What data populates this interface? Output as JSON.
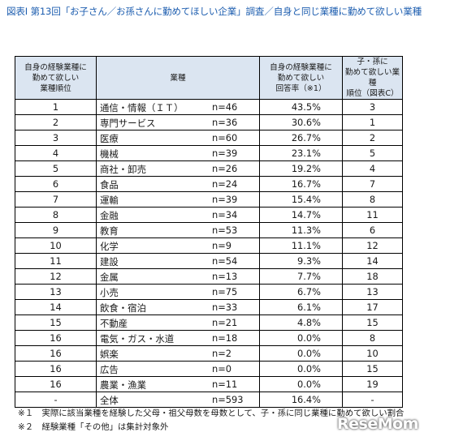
{
  "title": "図表Ⅰ 第13回「お子さん／お孫さんに勤めてほしい企業」調査／自身と同じ業種に勤めて欲しい業種",
  "headers": {
    "rank": "自身の経験業種に\n勤めて欲しい\n業種順位",
    "industry": "業種",
    "rate": "自身の経験業種に\n勤めて欲しい\n回答率（※1）",
    "child_rank": "子・孫に\n勤めて欲しい業種\n順位（図表C）"
  },
  "rows": [
    {
      "rank": "1",
      "industry": "通信・情報（ＩＴ）",
      "n": "n=46",
      "rate": "43.5%",
      "child_rank": "3"
    },
    {
      "rank": "2",
      "industry": "専門サービス",
      "n": "n=36",
      "rate": "30.6%",
      "child_rank": "1"
    },
    {
      "rank": "3",
      "industry": "医療",
      "n": "n=60",
      "rate": "26.7%",
      "child_rank": "2"
    },
    {
      "rank": "4",
      "industry": "機械",
      "n": "n=39",
      "rate": "23.1%",
      "child_rank": "5"
    },
    {
      "rank": "5",
      "industry": "商社・卸売",
      "n": "n=26",
      "rate": "19.2%",
      "child_rank": "4"
    },
    {
      "rank": "6",
      "industry": "食品",
      "n": "n=24",
      "rate": "16.7%",
      "child_rank": "7"
    },
    {
      "rank": "7",
      "industry": "運輸",
      "n": "n=39",
      "rate": "15.4%",
      "child_rank": "8"
    },
    {
      "rank": "8",
      "industry": "金融",
      "n": "n=34",
      "rate": "14.7%",
      "child_rank": "11"
    },
    {
      "rank": "9",
      "industry": "教育",
      "n": "n=53",
      "rate": "11.3%",
      "child_rank": "6"
    },
    {
      "rank": "10",
      "industry": "化学",
      "n": "n=9",
      "rate": "11.1%",
      "child_rank": "12"
    },
    {
      "rank": "11",
      "industry": "建設",
      "n": "n=54",
      "rate": "9.3%",
      "child_rank": "14"
    },
    {
      "rank": "12",
      "industry": "金属",
      "n": "n=13",
      "rate": "7.7%",
      "child_rank": "18"
    },
    {
      "rank": "13",
      "industry": "小売",
      "n": "n=75",
      "rate": "6.7%",
      "child_rank": "13"
    },
    {
      "rank": "14",
      "industry": "飲食・宿泊",
      "n": "n=33",
      "rate": "6.1%",
      "child_rank": "17"
    },
    {
      "rank": "15",
      "industry": "不動産",
      "n": "n=21",
      "rate": "4.8%",
      "child_rank": "15"
    },
    {
      "rank": "16",
      "industry": "電気・ガス・水道",
      "n": "n=18",
      "rate": "0.0%",
      "child_rank": "8"
    },
    {
      "rank": "16",
      "industry": "娯楽",
      "n": "n=2",
      "rate": "0.0%",
      "child_rank": "10"
    },
    {
      "rank": "16",
      "industry": "広告",
      "n": "n=0",
      "rate": "0.0%",
      "child_rank": "15"
    },
    {
      "rank": "16",
      "industry": "農業・漁業",
      "n": "n=11",
      "rate": "0.0%",
      "child_rank": "19"
    },
    {
      "rank": "-",
      "industry": "全体",
      "n": "n=593",
      "rate": "16.4%",
      "child_rank": "-"
    }
  ],
  "notes": [
    "※１　実際に該当業種を経験した父母・祖父母数を母数として、子・孫に同じ業種に勤めて欲しい割合",
    "※２　経験業種「その他」は集計対象外"
  ],
  "watermark": "ReseMom",
  "colors": {
    "title": "#1f5fb0",
    "header_bg": "#dbe5f1"
  }
}
